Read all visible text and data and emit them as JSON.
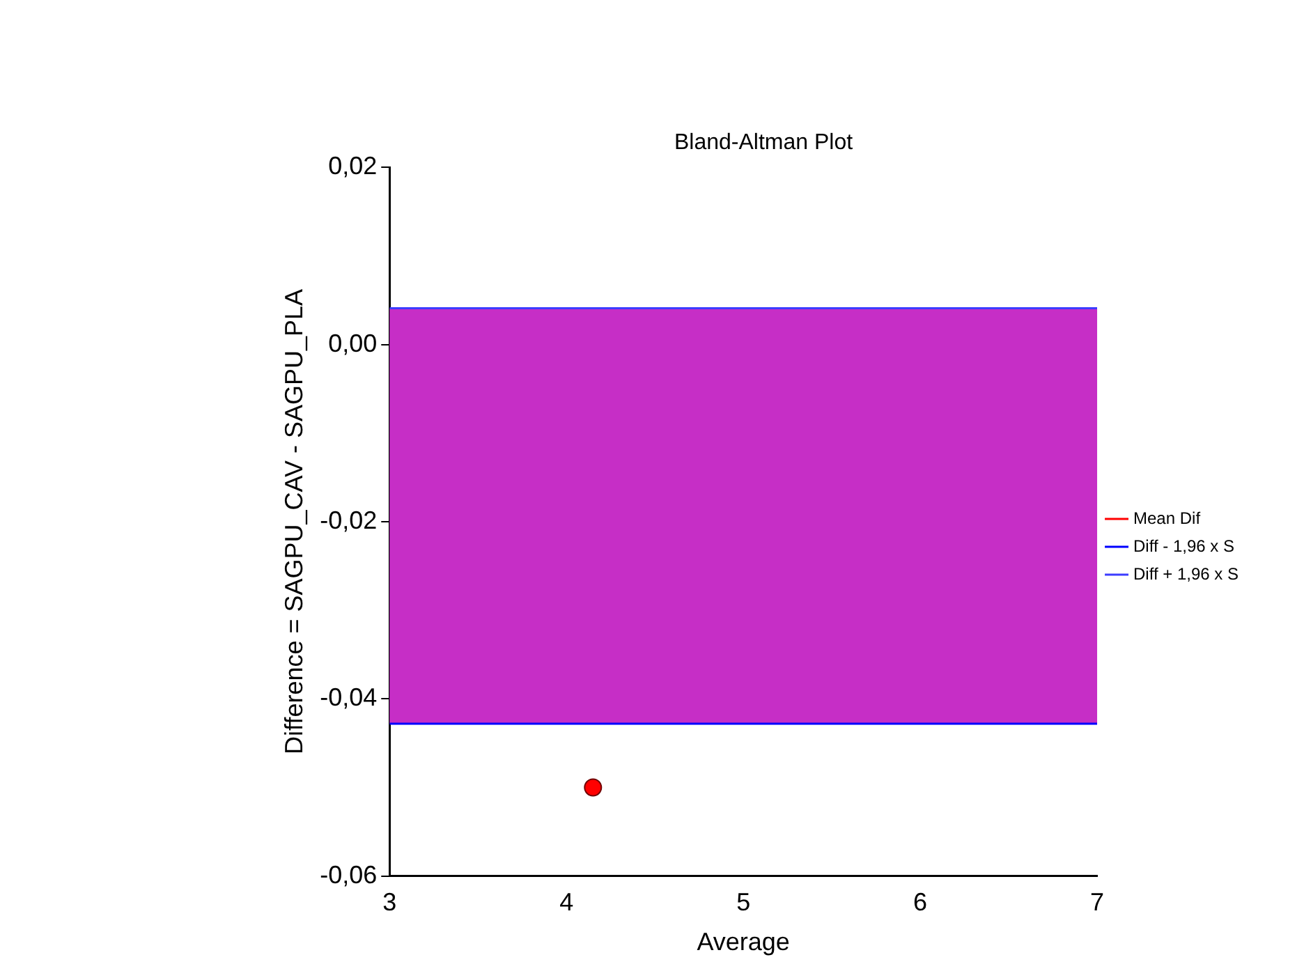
{
  "chart_data": {
    "type": "scatter",
    "title": "Bland-Altman Plot",
    "xlabel": "Average",
    "ylabel": "Difference = SAGPU_CAV - SAGPU_PLA",
    "series": [
      {
        "color": "#ff0000",
        "x": [
          4.15
        ],
        "values": [
          -0.05
        ],
        "marker": "circle"
      },
      {
        "type": "line",
        "name": "Mean Dif",
        "color": "#ff0000",
        "marker": "none"
      },
      {
        "type": "line",
        "name": "Diff - 1,96 x S",
        "color": "#0000ff",
        "x": [
          3,
          7
        ],
        "values": [
          -0.0428,
          -0.0428
        ],
        "marker": "none"
      },
      {
        "type": "line",
        "name": "Diff + 1,96 x S",
        "color": "#3c3cff",
        "x": [
          3,
          7
        ],
        "values": [
          0.0041,
          0.0041
        ],
        "marker": "none"
      }
    ],
    "bands": [
      {
        "axis": "y",
        "from": -0.0428,
        "to": 0.0041,
        "color": "#c62ec6"
      }
    ],
    "xlim": [
      3,
      7
    ],
    "xticks": [
      3,
      4,
      5,
      6,
      7
    ],
    "ylim": [
      -0.06,
      0.02
    ],
    "yticks": [
      {
        "value": -0.06,
        "label": "-0,06"
      },
      {
        "value": -0.04,
        "label": "-0,04"
      },
      {
        "value": -0.02,
        "label": "-0,02"
      },
      {
        "value": 0,
        "label": "0,00"
      },
      {
        "value": 0.02,
        "label": "0,02"
      }
    ],
    "grid": false,
    "legend": "right"
  }
}
